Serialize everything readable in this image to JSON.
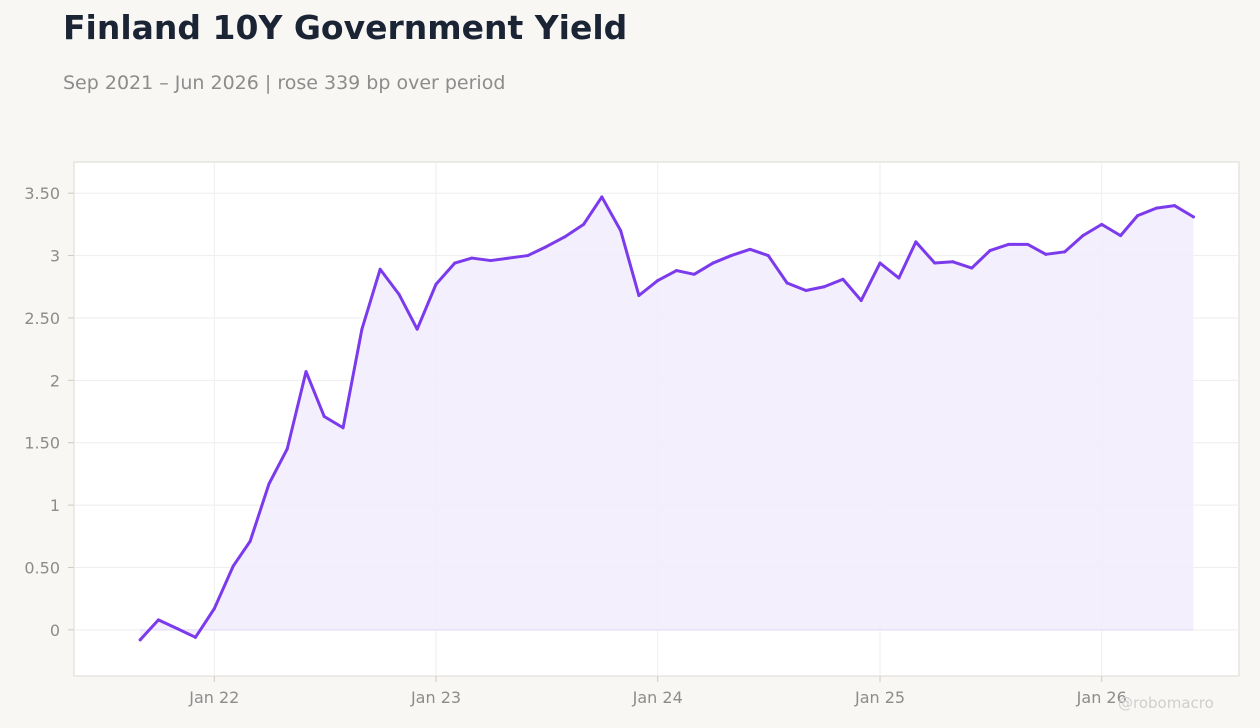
{
  "header": {
    "title": "Finland 10Y Government Yield",
    "subtitle": "Sep 2021 – Jun 2026 | rose 339 bp over period"
  },
  "watermark": "@robomacro",
  "colors": {
    "line": "#7c3aed",
    "fill": "#f1ecfc",
    "background": "#f8f7f4",
    "plot_background": "#ffffff",
    "grid": "#eeeeee",
    "tick_text": "#8c8c8c"
  },
  "chart_data": {
    "type": "area",
    "title": "Finland 10Y Government Yield",
    "subtitle": "Sep 2021 – Jun 2026 | rose 339 bp over period",
    "xlabel": "",
    "ylabel": "",
    "grid": true,
    "legend": "none",
    "ylim": [
      -0.37,
      3.75
    ],
    "xlim": [
      "2021-05-15",
      "2026-08-15"
    ],
    "y_ticks": [
      {
        "value": 0,
        "label": "0"
      },
      {
        "value": 0.5,
        "label": "0.50"
      },
      {
        "value": 1,
        "label": "1"
      },
      {
        "value": 1.5,
        "label": "1.50"
      },
      {
        "value": 2,
        "label": "2"
      },
      {
        "value": 2.5,
        "label": "2.50"
      },
      {
        "value": 3,
        "label": "3"
      },
      {
        "value": 3.5,
        "label": "3.50"
      }
    ],
    "x_ticks": [
      {
        "value": "2022-01-01",
        "label": "Jan 22"
      },
      {
        "value": "2023-01-01",
        "label": "Jan 23"
      },
      {
        "value": "2024-01-01",
        "label": "Jan 24"
      },
      {
        "value": "2025-01-01",
        "label": "Jan 25"
      },
      {
        "value": "2026-01-01",
        "label": "Jan 26"
      }
    ],
    "series": [
      {
        "x": [
          "2021-09-01",
          "2021-10-01",
          "2021-11-01",
          "2021-12-01",
          "2022-01-01",
          "2022-02-01",
          "2022-03-01",
          "2022-04-01",
          "2022-05-01",
          "2022-06-01",
          "2022-07-01",
          "2022-08-01",
          "2022-09-01",
          "2022-10-01",
          "2022-11-01",
          "2022-12-01",
          "2023-01-01",
          "2023-02-01",
          "2023-03-01",
          "2023-04-01",
          "2023-05-01",
          "2023-06-01",
          "2023-07-01",
          "2023-08-01",
          "2023-09-01",
          "2023-10-01",
          "2023-11-01",
          "2023-12-01",
          "2024-01-01",
          "2024-02-01",
          "2024-03-01",
          "2024-04-01",
          "2024-05-01",
          "2024-06-01",
          "2024-07-01",
          "2024-08-01",
          "2024-09-01",
          "2024-10-01",
          "2024-11-01",
          "2024-12-01",
          "2025-01-01",
          "2025-02-01",
          "2025-03-01",
          "2025-04-01",
          "2025-05-01",
          "2025-06-01",
          "2025-07-01",
          "2025-08-01",
          "2025-09-01",
          "2025-10-01",
          "2025-11-01",
          "2025-12-01",
          "2026-01-01",
          "2026-02-01",
          "2026-03-01",
          "2026-04-01",
          "2026-05-01",
          "2026-06-01"
        ],
        "values": [
          -0.08,
          0.08,
          0.01,
          -0.06,
          0.17,
          0.51,
          0.71,
          1.17,
          1.45,
          2.07,
          1.71,
          1.62,
          2.41,
          2.89,
          2.69,
          2.41,
          2.77,
          2.94,
          2.98,
          2.96,
          2.98,
          3.0,
          3.07,
          3.15,
          3.25,
          3.47,
          3.2,
          2.68,
          2.8,
          2.88,
          2.85,
          2.94,
          3.0,
          3.05,
          3.0,
          2.78,
          2.72,
          2.75,
          2.81,
          2.64,
          2.94,
          2.82,
          3.11,
          2.94,
          2.95,
          2.9,
          3.04,
          3.09,
          3.09,
          3.01,
          3.03,
          3.16,
          3.25,
          3.16,
          3.32,
          3.38,
          3.4,
          3.31
        ]
      }
    ]
  }
}
